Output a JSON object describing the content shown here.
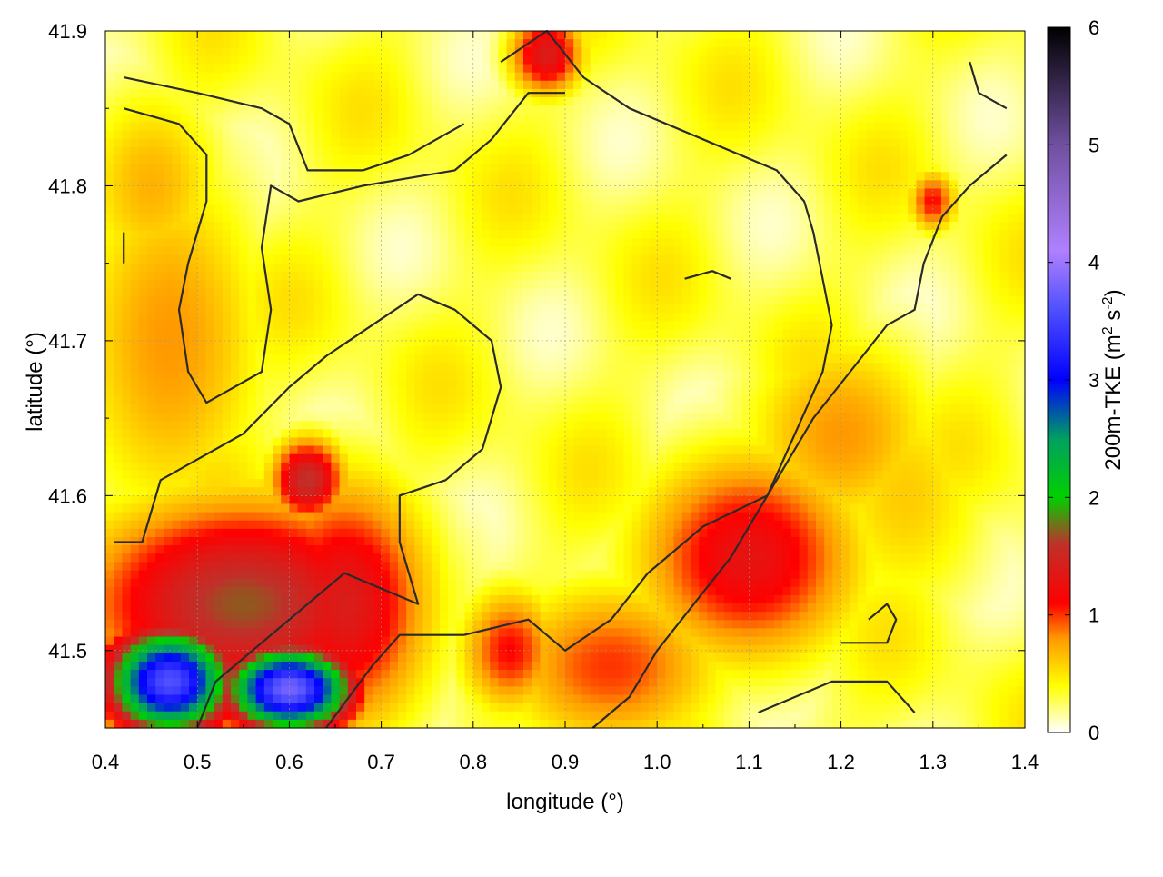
{
  "chart_data": {
    "type": "heatmap",
    "title": "",
    "xlabel": "longitude (°)",
    "ylabel": "latitude (°)",
    "xlim": [
      0.4,
      1.4
    ],
    "ylim": [
      41.45,
      41.9
    ],
    "xticks": [
      0.4,
      0.5,
      0.6,
      0.7,
      0.8,
      0.9,
      1.0,
      1.1,
      1.2,
      1.3,
      1.4
    ],
    "xtick_labels": [
      "0.4",
      "0.5",
      "0.6",
      "0.7",
      "0.8",
      "0.9",
      "1.0",
      "1.1",
      "1.2",
      "1.3",
      "1.4"
    ],
    "yticks": [
      41.5,
      41.6,
      41.7,
      41.8,
      41.9
    ],
    "ytick_labels": [
      "41.5",
      "41.6",
      "41.7",
      "41.8",
      "41.9"
    ],
    "grid": true,
    "colorbar": {
      "label": "200m-TKE (m² s⁻²)",
      "label_main": "200m-TKE (m",
      "label_sup1": "2",
      "label_mid": " s",
      "label_sup2": "-2",
      "label_end": ")",
      "range": [
        0,
        6
      ],
      "ticks": [
        0,
        1,
        2,
        3,
        4,
        5,
        6
      ],
      "tick_labels": [
        "0",
        "1",
        "2",
        "3",
        "4",
        "5",
        "6"
      ],
      "palette": [
        {
          "value": 0.0,
          "color": "#ffffff"
        },
        {
          "value": 0.4,
          "color": "#ffff00"
        },
        {
          "value": 0.8,
          "color": "#ff9900"
        },
        {
          "value": 1.1,
          "color": "#ff0000"
        },
        {
          "value": 1.6,
          "color": "#c0302a"
        },
        {
          "value": 2.0,
          "color": "#00d000"
        },
        {
          "value": 2.5,
          "color": "#00a060"
        },
        {
          "value": 3.0,
          "color": "#0000ff"
        },
        {
          "value": 3.6,
          "color": "#5050ff"
        },
        {
          "value": 4.1,
          "color": "#b080ff"
        },
        {
          "value": 5.0,
          "color": "#7050a0"
        },
        {
          "value": 6.0,
          "color": "#000000"
        }
      ]
    },
    "field_features": [
      {
        "lon": 0.47,
        "lat": 41.48,
        "tke": 3.6,
        "sx": 0.05,
        "sy": 0.025
      },
      {
        "lon": 0.6,
        "lat": 41.475,
        "tke": 3.8,
        "sx": 0.05,
        "sy": 0.02
      },
      {
        "lon": 0.55,
        "lat": 41.53,
        "tke": 1.7,
        "sx": 0.13,
        "sy": 0.05
      },
      {
        "lon": 0.66,
        "lat": 41.53,
        "tke": 1.4,
        "sx": 0.07,
        "sy": 0.06
      },
      {
        "lon": 0.47,
        "lat": 41.7,
        "tke": 0.8,
        "sx": 0.08,
        "sy": 0.09
      },
      {
        "lon": 0.45,
        "lat": 41.8,
        "tke": 0.7,
        "sx": 0.06,
        "sy": 0.05
      },
      {
        "lon": 1.1,
        "lat": 41.56,
        "tke": 1.3,
        "sx": 0.09,
        "sy": 0.05
      },
      {
        "lon": 0.95,
        "lat": 41.49,
        "tke": 1.0,
        "sx": 0.09,
        "sy": 0.04
      },
      {
        "lon": 0.84,
        "lat": 41.5,
        "tke": 1.1,
        "sx": 0.04,
        "sy": 0.03
      },
      {
        "lon": 0.88,
        "lat": 41.885,
        "tke": 1.4,
        "sx": 0.03,
        "sy": 0.02
      },
      {
        "lon": 0.62,
        "lat": 41.61,
        "tke": 1.6,
        "sx": 0.03,
        "sy": 0.02
      },
      {
        "lon": 1.2,
        "lat": 41.64,
        "tke": 0.8,
        "sx": 0.08,
        "sy": 0.05
      },
      {
        "lon": 1.3,
        "lat": 41.79,
        "tke": 1.1,
        "sx": 0.02,
        "sy": 0.015
      },
      {
        "lon": 1.27,
        "lat": 41.6,
        "tke": 0.6,
        "sx": 0.07,
        "sy": 0.06
      }
    ],
    "contours": [
      [
        [
          0.42,
          41.87
        ],
        [
          0.5,
          41.86
        ],
        [
          0.57,
          41.85
        ],
        [
          0.6,
          41.84
        ],
        [
          0.62,
          41.81
        ],
        [
          0.68,
          41.81
        ],
        [
          0.73,
          41.82
        ],
        [
          0.76,
          41.83
        ],
        [
          0.79,
          41.84
        ]
      ],
      [
        [
          0.42,
          41.85
        ],
        [
          0.48,
          41.84
        ],
        [
          0.51,
          41.82
        ],
        [
          0.51,
          41.79
        ],
        [
          0.49,
          41.75
        ],
        [
          0.48,
          41.72
        ],
        [
          0.49,
          41.68
        ],
        [
          0.51,
          41.66
        ],
        [
          0.54,
          41.67
        ],
        [
          0.57,
          41.68
        ],
        [
          0.58,
          41.72
        ],
        [
          0.57,
          41.76
        ],
        [
          0.58,
          41.8
        ],
        [
          0.61,
          41.79
        ],
        [
          0.68,
          41.8
        ],
        [
          0.78,
          41.81
        ],
        [
          0.82,
          41.83
        ],
        [
          0.86,
          41.86
        ],
        [
          0.9,
          41.86
        ]
      ],
      [
        [
          0.41,
          41.57
        ],
        [
          0.44,
          41.57
        ],
        [
          0.46,
          41.61
        ],
        [
          0.49,
          41.62
        ],
        [
          0.55,
          41.64
        ],
        [
          0.6,
          41.67
        ],
        [
          0.64,
          41.69
        ],
        [
          0.69,
          41.71
        ],
        [
          0.74,
          41.73
        ],
        [
          0.78,
          41.72
        ],
        [
          0.82,
          41.7
        ],
        [
          0.83,
          41.67
        ],
        [
          0.81,
          41.63
        ],
        [
          0.77,
          41.61
        ],
        [
          0.72,
          41.6
        ],
        [
          0.72,
          41.57
        ],
        [
          0.74,
          41.53
        ],
        [
          0.7,
          41.54
        ],
        [
          0.66,
          41.55
        ],
        [
          0.6,
          41.52
        ],
        [
          0.56,
          41.5
        ],
        [
          0.52,
          41.48
        ],
        [
          0.5,
          41.45
        ]
      ],
      [
        [
          0.64,
          41.45
        ],
        [
          0.69,
          41.49
        ],
        [
          0.72,
          41.51
        ],
        [
          0.79,
          41.51
        ],
        [
          0.86,
          41.52
        ],
        [
          0.9,
          41.5
        ],
        [
          0.95,
          41.52
        ],
        [
          0.99,
          41.55
        ],
        [
          1.05,
          41.58
        ],
        [
          1.12,
          41.6
        ],
        [
          1.17,
          41.65
        ],
        [
          1.21,
          41.68
        ],
        [
          1.25,
          41.71
        ],
        [
          1.28,
          41.72
        ],
        [
          1.29,
          41.75
        ],
        [
          1.31,
          41.78
        ],
        [
          1.34,
          41.8
        ],
        [
          1.38,
          41.82
        ]
      ],
      [
        [
          0.83,
          41.88
        ],
        [
          0.88,
          41.9
        ],
        [
          0.92,
          41.87
        ],
        [
          0.97,
          41.85
        ],
        [
          1.05,
          41.83
        ],
        [
          1.13,
          41.81
        ],
        [
          1.16,
          41.79
        ],
        [
          1.17,
          41.77
        ],
        [
          1.18,
          41.74
        ],
        [
          1.19,
          41.71
        ],
        [
          1.18,
          41.68
        ],
        [
          1.15,
          41.64
        ],
        [
          1.12,
          41.6
        ],
        [
          1.08,
          41.56
        ],
        [
          1.04,
          41.53
        ],
        [
          1.0,
          41.5
        ],
        [
          0.97,
          41.47
        ],
        [
          0.93,
          41.45
        ]
      ],
      [
        [
          1.03,
          41.74
        ],
        [
          1.06,
          41.745
        ],
        [
          1.08,
          41.74
        ]
      ],
      [
        [
          1.11,
          41.46
        ],
        [
          1.15,
          41.47
        ],
        [
          1.19,
          41.48
        ],
        [
          1.25,
          41.48
        ],
        [
          1.28,
          41.46
        ]
      ],
      [
        [
          1.2,
          41.505
        ],
        [
          1.25,
          41.505
        ],
        [
          1.26,
          41.52
        ],
        [
          1.25,
          41.53
        ],
        [
          1.23,
          41.52
        ]
      ],
      [
        [
          1.34,
          41.88
        ],
        [
          1.35,
          41.86
        ],
        [
          1.38,
          41.85
        ]
      ],
      [
        [
          0.42,
          41.77
        ],
        [
          0.42,
          41.75
        ]
      ]
    ]
  }
}
